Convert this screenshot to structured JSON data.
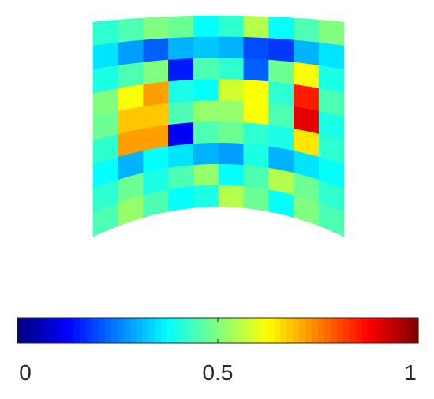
{
  "chart_data": {
    "type": "heatmap",
    "colormap": "jet",
    "value_range": [
      0,
      1
    ],
    "title": "",
    "rows": 9,
    "cols": 10,
    "values": [
      [
        0.42,
        0.45,
        0.5,
        0.48,
        0.38,
        0.42,
        0.55,
        0.38,
        0.45,
        0.5
      ],
      [
        0.35,
        0.28,
        0.22,
        0.3,
        0.32,
        0.3,
        0.2,
        0.18,
        0.3,
        0.35
      ],
      [
        0.4,
        0.45,
        0.5,
        0.15,
        0.45,
        0.42,
        0.22,
        0.48,
        0.62,
        0.4
      ],
      [
        0.5,
        0.62,
        0.72,
        0.4,
        0.38,
        0.58,
        0.62,
        0.42,
        0.85,
        0.45
      ],
      [
        0.48,
        0.68,
        0.68,
        0.45,
        0.52,
        0.52,
        0.62,
        0.45,
        0.9,
        0.4
      ],
      [
        0.42,
        0.72,
        0.72,
        0.12,
        0.45,
        0.48,
        0.42,
        0.4,
        0.65,
        0.42
      ],
      [
        0.38,
        0.3,
        0.38,
        0.35,
        0.3,
        0.28,
        0.4,
        0.3,
        0.35,
        0.38
      ],
      [
        0.42,
        0.48,
        0.4,
        0.45,
        0.52,
        0.38,
        0.45,
        0.55,
        0.48,
        0.42
      ],
      [
        0.45,
        0.52,
        0.45,
        0.38,
        0.4,
        0.55,
        0.48,
        0.38,
        0.5,
        0.45
      ]
    ],
    "colorbar": {
      "range": [
        0,
        1
      ],
      "ticks": [
        0,
        0.5,
        1
      ],
      "tick_labels": [
        "0",
        "0.5",
        "1"
      ]
    }
  }
}
